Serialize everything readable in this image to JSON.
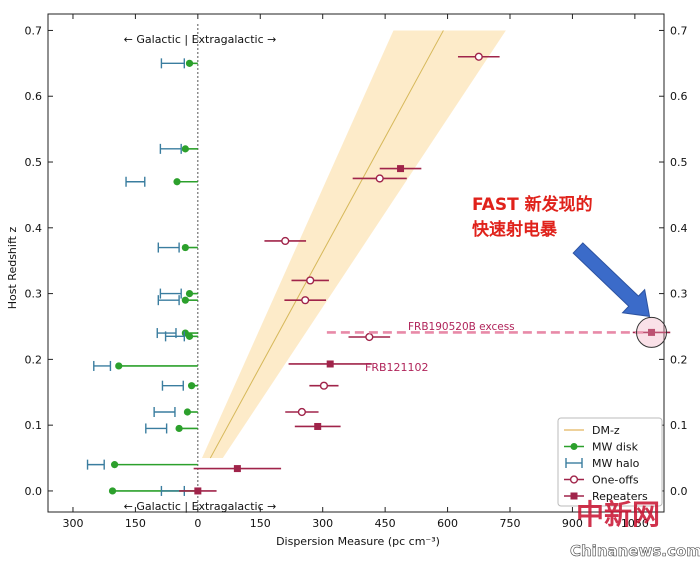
{
  "chart_data": {
    "type": "scatter",
    "ylabel": "Host Redshift z",
    "xlabel": "Dispersion Measure (pc cm⁻³)",
    "xlim": [
      -360,
      1120
    ],
    "ylim": [
      -0.032,
      0.725
    ],
    "x_ticks": [
      {
        "v": -300,
        "label": "300"
      },
      {
        "v": -150,
        "label": "150"
      },
      {
        "v": 0,
        "label": "0"
      },
      {
        "v": 150,
        "label": "150"
      },
      {
        "v": 300,
        "label": "300"
      },
      {
        "v": 450,
        "label": "450"
      },
      {
        "v": 600,
        "label": "600"
      },
      {
        "v": 750,
        "label": "750"
      },
      {
        "v": 900,
        "label": "900"
      },
      {
        "v": 1050,
        "label": "1050"
      }
    ],
    "y_ticks": [
      0.0,
      0.1,
      0.2,
      0.3,
      0.4,
      0.5,
      0.6,
      0.7
    ],
    "y_tick_labels": [
      "0.0",
      "0.1",
      "0.2",
      "0.3",
      "0.4",
      "0.5",
      "0.6",
      "0.7"
    ],
    "grid": false,
    "legend_position": "bottom-right",
    "divider_label": "← Galactic | Extragalactic →",
    "dmz_band": [
      {
        "z": 0.05,
        "x_lo": 10,
        "x_mid": 30,
        "x_hi": 60
      },
      {
        "z": 0.7,
        "x_lo": 470,
        "x_mid": 590,
        "x_hi": 740
      }
    ],
    "series": [
      {
        "name": "DM-z",
        "kind": "line",
        "color": "#e8c27a"
      },
      {
        "name": "MW disk",
        "kind": "disk",
        "color": "#2ca02c",
        "points": [
          {
            "z": 0.0,
            "x": -205
          },
          {
            "z": 0.04,
            "x": -200
          },
          {
            "z": 0.095,
            "x": -45
          },
          {
            "z": 0.12,
            "x": -25
          },
          {
            "z": 0.16,
            "x": -15
          },
          {
            "z": 0.19,
            "x": -190
          },
          {
            "z": 0.235,
            "x": -20
          },
          {
            "z": 0.24,
            "x": -30
          },
          {
            "z": 0.29,
            "x": -30
          },
          {
            "z": 0.3,
            "x": -20
          },
          {
            "z": 0.37,
            "x": -30
          },
          {
            "z": 0.47,
            "x": -50
          },
          {
            "z": 0.52,
            "x": -30
          },
          {
            "z": 0.65,
            "x": -20
          }
        ]
      },
      {
        "name": "MW halo",
        "kind": "halo",
        "color": "#3a7d9f",
        "points": [
          {
            "z": 0.0,
            "x": -60,
            "w": 55
          },
          {
            "z": 0.04,
            "x": -245,
            "w": 40
          },
          {
            "z": 0.095,
            "x": -100,
            "w": 50
          },
          {
            "z": 0.12,
            "x": -80,
            "w": 50
          },
          {
            "z": 0.16,
            "x": -60,
            "w": 50
          },
          {
            "z": 0.19,
            "x": -230,
            "w": 40
          },
          {
            "z": 0.235,
            "x": -55,
            "w": 45
          },
          {
            "z": 0.24,
            "x": -75,
            "w": 45
          },
          {
            "z": 0.29,
            "x": -70,
            "w": 50
          },
          {
            "z": 0.3,
            "x": -65,
            "w": 50
          },
          {
            "z": 0.37,
            "x": -70,
            "w": 50
          },
          {
            "z": 0.47,
            "x": -150,
            "w": 45
          },
          {
            "z": 0.52,
            "x": -65,
            "w": 50
          },
          {
            "z": 0.65,
            "x": -60,
            "w": 55
          }
        ]
      },
      {
        "name": "One-offs",
        "kind": "open",
        "color": "#a0244a",
        "points": [
          {
            "z": 0.12,
            "x": 250,
            "err": 40
          },
          {
            "z": 0.16,
            "x": 303,
            "err": 35
          },
          {
            "z": 0.234,
            "x": 412,
            "err": 50
          },
          {
            "z": 0.29,
            "x": 258,
            "err": 50
          },
          {
            "z": 0.32,
            "x": 270,
            "err": 45
          },
          {
            "z": 0.38,
            "x": 210,
            "err": 50
          },
          {
            "z": 0.475,
            "x": 437,
            "err": 65
          },
          {
            "z": 0.66,
            "x": 675,
            "err": 50
          }
        ]
      },
      {
        "name": "Repeaters",
        "kind": "filled",
        "color": "#a0244a",
        "points": [
          {
            "z": 0.0,
            "x": 0,
            "err": 45
          },
          {
            "z": 0.034,
            "x": 95,
            "err": 105
          },
          {
            "z": 0.098,
            "x": 288,
            "err": 55
          },
          {
            "z": 0.193,
            "x": 318,
            "err": 100
          },
          {
            "z": 0.49,
            "x": 487,
            "err": 50
          },
          {
            "z": 0.241,
            "x": 1090,
            "err": 45
          }
        ]
      }
    ],
    "legend": [
      "DM-z",
      "MW disk",
      "MW halo",
      "One-offs",
      "Repeaters"
    ],
    "annotations": {
      "frb121102": {
        "text": "FRB121102",
        "x": 328,
        "z": 0.193
      },
      "excess": {
        "text": "FRB190520B excess",
        "x_from": 310,
        "x_to": 1070,
        "z": 0.241
      },
      "highlight": {
        "line1": "FAST 新发现的",
        "line2": "快速射电暴",
        "color": "#e0221b"
      },
      "arrow_color": "#3b6bc9"
    }
  },
  "watermark": {
    "cn": "中新网",
    "site": "Chinanews.com"
  }
}
